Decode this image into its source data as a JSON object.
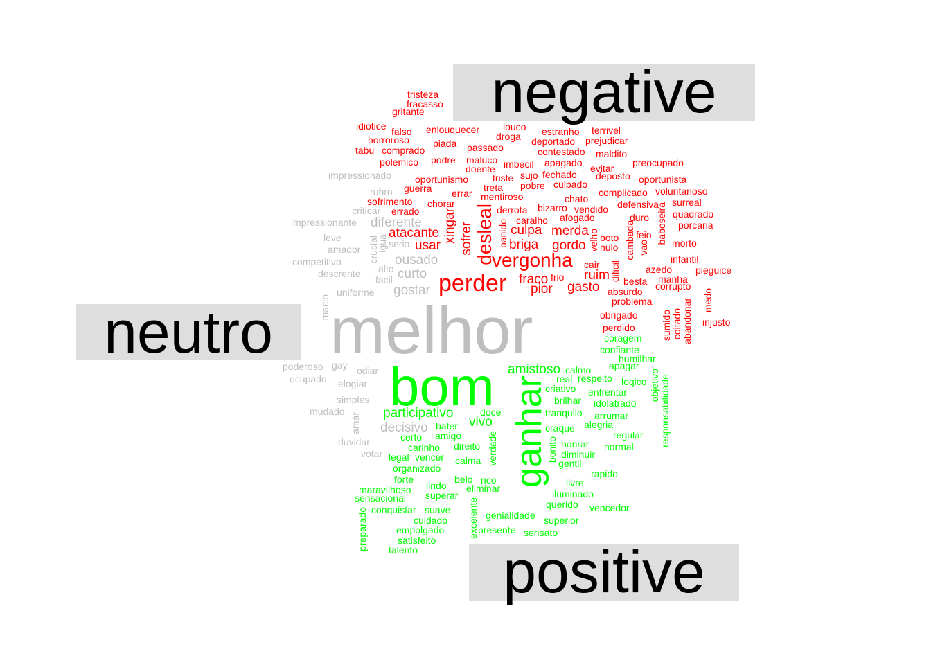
{
  "chart_data": {
    "type": "wordcloud",
    "groups": [
      {
        "name": "negative",
        "color": "#ff0000"
      },
      {
        "name": "neutro",
        "color": "#bebebe"
      },
      {
        "name": "positive",
        "color": "#00ff00"
      }
    ],
    "words": [
      {
        "text": "melhor",
        "group": "neutro",
        "weight": 10
      },
      {
        "text": "impressionado",
        "group": "neutro",
        "weight": 1
      },
      {
        "text": "rubro",
        "group": "neutro",
        "weight": 1
      },
      {
        "text": "criticar",
        "group": "neutro",
        "weight": 1
      },
      {
        "text": "impressionante",
        "group": "neutro",
        "weight": 1
      },
      {
        "text": "diferente",
        "group": "neutro",
        "weight": 2
      },
      {
        "text": "leve",
        "group": "neutro",
        "weight": 1
      },
      {
        "text": "amador",
        "group": "neutro",
        "weight": 1
      },
      {
        "text": "crucial",
        "group": "neutro",
        "weight": 1
      },
      {
        "text": "igual",
        "group": "neutro",
        "weight": 1
      },
      {
        "text": "serio",
        "group": "neutro",
        "weight": 1
      },
      {
        "text": "competitivo",
        "group": "neutro",
        "weight": 1
      },
      {
        "text": "ousado",
        "group": "neutro",
        "weight": 2
      },
      {
        "text": "alto",
        "group": "neutro",
        "weight": 1
      },
      {
        "text": "curto",
        "group": "neutro",
        "weight": 2
      },
      {
        "text": "descrente",
        "group": "neutro",
        "weight": 1
      },
      {
        "text": "facil",
        "group": "neutro",
        "weight": 1
      },
      {
        "text": "uniforme",
        "group": "neutro",
        "weight": 1
      },
      {
        "text": "gostar",
        "group": "neutro",
        "weight": 2
      },
      {
        "text": "macio",
        "group": "neutro",
        "weight": 1
      },
      {
        "text": "poderoso",
        "group": "neutro",
        "weight": 1
      },
      {
        "text": "gay",
        "group": "neutro",
        "weight": 1
      },
      {
        "text": "odiar",
        "group": "neutro",
        "weight": 1
      },
      {
        "text": "ocupado",
        "group": "neutro",
        "weight": 1
      },
      {
        "text": "elogiar",
        "group": "neutro",
        "weight": 1
      },
      {
        "text": "simples",
        "group": "neutro",
        "weight": 1
      },
      {
        "text": "mudado",
        "group": "neutro",
        "weight": 1
      },
      {
        "text": "amar",
        "group": "neutro",
        "weight": 1
      },
      {
        "text": "decisivo",
        "group": "neutro",
        "weight": 2
      },
      {
        "text": "duvidar",
        "group": "neutro",
        "weight": 1
      },
      {
        "text": "votar",
        "group": "neutro",
        "weight": 1
      },
      {
        "text": "tristeza",
        "group": "negative",
        "weight": 1
      },
      {
        "text": "fracasso",
        "group": "negative",
        "weight": 1
      },
      {
        "text": "gritante",
        "group": "negative",
        "weight": 1
      },
      {
        "text": "idiotice",
        "group": "negative",
        "weight": 1
      },
      {
        "text": "falso",
        "group": "negative",
        "weight": 1
      },
      {
        "text": "enlouquecer",
        "group": "negative",
        "weight": 1
      },
      {
        "text": "louco",
        "group": "negative",
        "weight": 1
      },
      {
        "text": "estranho",
        "group": "negative",
        "weight": 1
      },
      {
        "text": "terrivel",
        "group": "negative",
        "weight": 1
      },
      {
        "text": "horroroso",
        "group": "negative",
        "weight": 1
      },
      {
        "text": "droga",
        "group": "negative",
        "weight": 1
      },
      {
        "text": "deportado",
        "group": "negative",
        "weight": 1
      },
      {
        "text": "prejudicar",
        "group": "negative",
        "weight": 1
      },
      {
        "text": "tabu",
        "group": "negative",
        "weight": 1
      },
      {
        "text": "comprado",
        "group": "negative",
        "weight": 1
      },
      {
        "text": "piada",
        "group": "negative",
        "weight": 1
      },
      {
        "text": "passado",
        "group": "negative",
        "weight": 1
      },
      {
        "text": "contestado",
        "group": "negative",
        "weight": 1
      },
      {
        "text": "maldito",
        "group": "negative",
        "weight": 1
      },
      {
        "text": "polemico",
        "group": "negative",
        "weight": 1
      },
      {
        "text": "podre",
        "group": "negative",
        "weight": 1
      },
      {
        "text": "maluco",
        "group": "negative",
        "weight": 1
      },
      {
        "text": "imbecil",
        "group": "negative",
        "weight": 1
      },
      {
        "text": "apagado",
        "group": "negative",
        "weight": 1
      },
      {
        "text": "preocupado",
        "group": "negative",
        "weight": 1
      },
      {
        "text": "doente",
        "group": "negative",
        "weight": 1
      },
      {
        "text": "evitar",
        "group": "negative",
        "weight": 1
      },
      {
        "text": "sujo",
        "group": "negative",
        "weight": 1
      },
      {
        "text": "fechado",
        "group": "negative",
        "weight": 1
      },
      {
        "text": "deposto",
        "group": "negative",
        "weight": 1
      },
      {
        "text": "oportunismo",
        "group": "negative",
        "weight": 1
      },
      {
        "text": "triste",
        "group": "negative",
        "weight": 1
      },
      {
        "text": "oportunista",
        "group": "negative",
        "weight": 1
      },
      {
        "text": "pobre",
        "group": "negative",
        "weight": 1
      },
      {
        "text": "culpado",
        "group": "negative",
        "weight": 1
      },
      {
        "text": "guerra",
        "group": "negative",
        "weight": 1
      },
      {
        "text": "treta",
        "group": "negative",
        "weight": 1
      },
      {
        "text": "errar",
        "group": "negative",
        "weight": 1
      },
      {
        "text": "complicado",
        "group": "negative",
        "weight": 1
      },
      {
        "text": "voluntarioso",
        "group": "negative",
        "weight": 1
      },
      {
        "text": "mentiroso",
        "group": "negative",
        "weight": 1
      },
      {
        "text": "sofrimento",
        "group": "negative",
        "weight": 1
      },
      {
        "text": "chato",
        "group": "negative",
        "weight": 1
      },
      {
        "text": "surreal",
        "group": "negative",
        "weight": 1
      },
      {
        "text": "chorar",
        "group": "negative",
        "weight": 1
      },
      {
        "text": "bizarro",
        "group": "negative",
        "weight": 1
      },
      {
        "text": "defensiva",
        "group": "negative",
        "weight": 1
      },
      {
        "text": "errado",
        "group": "negative",
        "weight": 1
      },
      {
        "text": "derrota",
        "group": "negative",
        "weight": 1
      },
      {
        "text": "vendido",
        "group": "negative",
        "weight": 1
      },
      {
        "text": "quadrado",
        "group": "negative",
        "weight": 1
      },
      {
        "text": "afogado",
        "group": "negative",
        "weight": 1
      },
      {
        "text": "duro",
        "group": "negative",
        "weight": 1
      },
      {
        "text": "porcaria",
        "group": "negative",
        "weight": 1
      },
      {
        "text": "caralho",
        "group": "negative",
        "weight": 1
      },
      {
        "text": "xingar",
        "group": "negative",
        "weight": 2
      },
      {
        "text": "desleal",
        "group": "negative",
        "weight": 3
      },
      {
        "text": "banido",
        "group": "negative",
        "weight": 1
      },
      {
        "text": "baboseira",
        "group": "negative",
        "weight": 1
      },
      {
        "text": "atacante",
        "group": "negative",
        "weight": 2
      },
      {
        "text": "culpa",
        "group": "negative",
        "weight": 2
      },
      {
        "text": "merda",
        "group": "negative",
        "weight": 2
      },
      {
        "text": "boto",
        "group": "negative",
        "weight": 1
      },
      {
        "text": "feio",
        "group": "negative",
        "weight": 1
      },
      {
        "text": "sofrer",
        "group": "negative",
        "weight": 2
      },
      {
        "text": "velho",
        "group": "negative",
        "weight": 1
      },
      {
        "text": "cambada",
        "group": "negative",
        "weight": 1
      },
      {
        "text": "morto",
        "group": "negative",
        "weight": 1
      },
      {
        "text": "usar",
        "group": "negative",
        "weight": 2
      },
      {
        "text": "briga",
        "group": "negative",
        "weight": 2
      },
      {
        "text": "gordo",
        "group": "negative",
        "weight": 2
      },
      {
        "text": "nulo",
        "group": "negative",
        "weight": 1
      },
      {
        "text": "vao",
        "group": "negative",
        "weight": 1
      },
      {
        "text": "vergonha",
        "group": "negative",
        "weight": 3
      },
      {
        "text": "infantil",
        "group": "negative",
        "weight": 1
      },
      {
        "text": "cair",
        "group": "negative",
        "weight": 1
      },
      {
        "text": "dificil",
        "group": "negative",
        "weight": 1
      },
      {
        "text": "azedo",
        "group": "negative",
        "weight": 1
      },
      {
        "text": "pieguice",
        "group": "negative",
        "weight": 1
      },
      {
        "text": "frio",
        "group": "negative",
        "weight": 1
      },
      {
        "text": "ruim",
        "group": "negative",
        "weight": 2
      },
      {
        "text": "manha",
        "group": "negative",
        "weight": 1
      },
      {
        "text": "perder",
        "group": "negative",
        "weight": 4
      },
      {
        "text": "fraco",
        "group": "negative",
        "weight": 2
      },
      {
        "text": "besta",
        "group": "negative",
        "weight": 1
      },
      {
        "text": "corrupto",
        "group": "negative",
        "weight": 1
      },
      {
        "text": "pior",
        "group": "negative",
        "weight": 2
      },
      {
        "text": "gasto",
        "group": "negative",
        "weight": 2
      },
      {
        "text": "absurdo",
        "group": "negative",
        "weight": 1
      },
      {
        "text": "problema",
        "group": "negative",
        "weight": 1
      },
      {
        "text": "medo",
        "group": "negative",
        "weight": 1
      },
      {
        "text": "abandonar",
        "group": "negative",
        "weight": 1
      },
      {
        "text": "coitado",
        "group": "negative",
        "weight": 1
      },
      {
        "text": "sumido",
        "group": "negative",
        "weight": 1
      },
      {
        "text": "obrigado",
        "group": "negative",
        "weight": 1
      },
      {
        "text": "injusto",
        "group": "negative",
        "weight": 1
      },
      {
        "text": "perdido",
        "group": "negative",
        "weight": 1
      },
      {
        "text": "coragem",
        "group": "positive",
        "weight": 1
      },
      {
        "text": "confiante",
        "group": "positive",
        "weight": 1
      },
      {
        "text": "humilhar",
        "group": "positive",
        "weight": 1
      },
      {
        "text": "amistoso",
        "group": "positive",
        "weight": 2
      },
      {
        "text": "calmo",
        "group": "positive",
        "weight": 1
      },
      {
        "text": "apagar",
        "group": "positive",
        "weight": 1
      },
      {
        "text": "bom",
        "group": "positive",
        "weight": 6
      },
      {
        "text": "real",
        "group": "positive",
        "weight": 1
      },
      {
        "text": "respeito",
        "group": "positive",
        "weight": 1
      },
      {
        "text": "logico",
        "group": "positive",
        "weight": 1
      },
      {
        "text": "objetivo",
        "group": "positive",
        "weight": 1
      },
      {
        "text": "criativo",
        "group": "positive",
        "weight": 1
      },
      {
        "text": "enfrentar",
        "group": "positive",
        "weight": 1
      },
      {
        "text": "responsabilidade",
        "group": "positive",
        "weight": 1
      },
      {
        "text": "brilhar",
        "group": "positive",
        "weight": 1
      },
      {
        "text": "idolatrado",
        "group": "positive",
        "weight": 1
      },
      {
        "text": "ganhar",
        "group": "positive",
        "weight": 5
      },
      {
        "text": "participativo",
        "group": "positive",
        "weight": 2
      },
      {
        "text": "doce",
        "group": "positive",
        "weight": 1
      },
      {
        "text": "tranquilo",
        "group": "positive",
        "weight": 1
      },
      {
        "text": "arrumar",
        "group": "positive",
        "weight": 1
      },
      {
        "text": "vivo",
        "group": "positive",
        "weight": 2
      },
      {
        "text": "bater",
        "group": "positive",
        "weight": 1
      },
      {
        "text": "craque",
        "group": "positive",
        "weight": 1
      },
      {
        "text": "alegria",
        "group": "positive",
        "weight": 1
      },
      {
        "text": "certo",
        "group": "positive",
        "weight": 1
      },
      {
        "text": "amigo",
        "group": "positive",
        "weight": 1
      },
      {
        "text": "regular",
        "group": "positive",
        "weight": 1
      },
      {
        "text": "carinho",
        "group": "positive",
        "weight": 1
      },
      {
        "text": "direito",
        "group": "positive",
        "weight": 1
      },
      {
        "text": "honrar",
        "group": "positive",
        "weight": 1
      },
      {
        "text": "normal",
        "group": "positive",
        "weight": 1
      },
      {
        "text": "verdade",
        "group": "positive",
        "weight": 1
      },
      {
        "text": "bonito",
        "group": "positive",
        "weight": 1
      },
      {
        "text": "legal",
        "group": "positive",
        "weight": 1
      },
      {
        "text": "vencer",
        "group": "positive",
        "weight": 1
      },
      {
        "text": "diminuir",
        "group": "positive",
        "weight": 1
      },
      {
        "text": "calma",
        "group": "positive",
        "weight": 1
      },
      {
        "text": "gentil",
        "group": "positive",
        "weight": 1
      },
      {
        "text": "organizado",
        "group": "positive",
        "weight": 1
      },
      {
        "text": "rapido",
        "group": "positive",
        "weight": 1
      },
      {
        "text": "forte",
        "group": "positive",
        "weight": 1
      },
      {
        "text": "belo",
        "group": "positive",
        "weight": 1
      },
      {
        "text": "rico",
        "group": "positive",
        "weight": 1
      },
      {
        "text": "livre",
        "group": "positive",
        "weight": 1
      },
      {
        "text": "lindo",
        "group": "positive",
        "weight": 1
      },
      {
        "text": "maravilhoso",
        "group": "positive",
        "weight": 1
      },
      {
        "text": "eliminar",
        "group": "positive",
        "weight": 1
      },
      {
        "text": "superar",
        "group": "positive",
        "weight": 1
      },
      {
        "text": "iluminado",
        "group": "positive",
        "weight": 1
      },
      {
        "text": "sensacional",
        "group": "positive",
        "weight": 1
      },
      {
        "text": "querido",
        "group": "positive",
        "weight": 1
      },
      {
        "text": "vencedor",
        "group": "positive",
        "weight": 1
      },
      {
        "text": "conquistar",
        "group": "positive",
        "weight": 1
      },
      {
        "text": "suave",
        "group": "positive",
        "weight": 1
      },
      {
        "text": "excelente",
        "group": "positive",
        "weight": 1
      },
      {
        "text": "genialidade",
        "group": "positive",
        "weight": 1
      },
      {
        "text": "preparado",
        "group": "positive",
        "weight": 1
      },
      {
        "text": "cuidado",
        "group": "positive",
        "weight": 1
      },
      {
        "text": "superior",
        "group": "positive",
        "weight": 1
      },
      {
        "text": "empolgado",
        "group": "positive",
        "weight": 1
      },
      {
        "text": "presente",
        "group": "positive",
        "weight": 1
      },
      {
        "text": "sensato",
        "group": "positive",
        "weight": 1
      },
      {
        "text": "satisfeito",
        "group": "positive",
        "weight": 1
      },
      {
        "text": "talento",
        "group": "positive",
        "weight": 1
      }
    ]
  }
}
